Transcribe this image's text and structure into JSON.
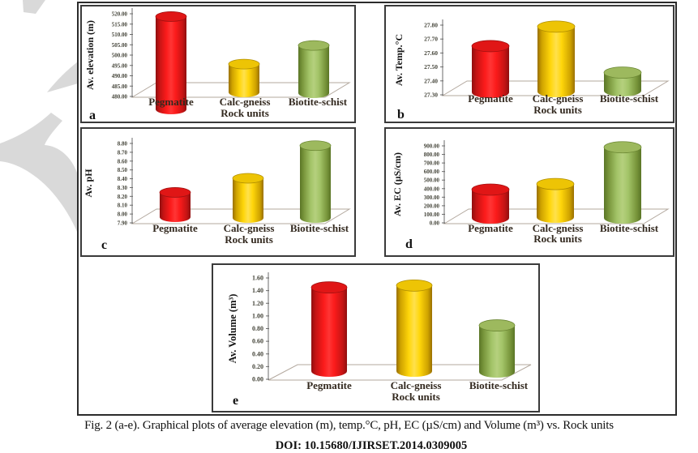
{
  "figure": {
    "caption": "Fig. 2 (a-e). Graphical plots of average elevation (m), temp.°C, pH, EC (µS/cm) and Volume (m³) vs. Rock units",
    "doi_line": "DOI: 10.15680/IJIRSET.2014.0309005"
  },
  "colors": {
    "pegmatite_red": "#e60000",
    "calc_gneiss_yellow": "#f2c500",
    "biotite_schist_green": "#93b552",
    "watermark_grey": "#d9d9d9",
    "axis_grey": "#6b6b6b",
    "floor_grey": "#b3a89e",
    "tick_text": "#45453a",
    "label_text": "#33291f"
  },
  "chart_data": [
    {
      "id": "a",
      "type": "bar",
      "title": "",
      "ylabel": "Av. elevation (m)",
      "xlabel": "Rock units",
      "categories": [
        "Pegmatite",
        "Calc-gneiss",
        "Biotite-schist"
      ],
      "values": [
        521,
        498,
        507
      ],
      "ylim": [
        480,
        520
      ],
      "yticks": [
        "520.00",
        "515.00",
        "510.00",
        "505.00",
        "500.00",
        "495.00",
        "490.00",
        "485.00",
        "480.00"
      ],
      "letter": "a",
      "grid": false,
      "legend": "none"
    },
    {
      "id": "b",
      "type": "bar",
      "title": "",
      "ylabel": "Av. Temp.°C",
      "xlabel": "Rock units",
      "categories": [
        "Pegmatite",
        "Calc-gneiss",
        "Biotite-schist"
      ],
      "values": [
        27.69,
        27.83,
        27.5
      ],
      "ylim": [
        27.3,
        27.8
      ],
      "yticks": [
        "27.80",
        "27.70",
        "27.60",
        "27.50",
        "27.40",
        "27.30"
      ],
      "letter": "b",
      "grid": false,
      "legend": "none"
    },
    {
      "id": "c",
      "type": "bar",
      "title": "",
      "ylabel": "Av. pH",
      "xlabel": "Rock units",
      "categories": [
        "Pegmatite",
        "Calc-gneiss",
        "Biotite-schist"
      ],
      "values": [
        8.3,
        8.46,
        8.83
      ],
      "ylim": [
        7.9,
        8.8
      ],
      "yticks": [
        "8.80",
        "8.70",
        "8.60",
        "8.50",
        "8.40",
        "8.30",
        "8.20",
        "8.10",
        "8.00",
        "7.90"
      ],
      "letter": "c",
      "grid": false,
      "legend": "none"
    },
    {
      "id": "d",
      "type": "bar",
      "title": "",
      "ylabel": "Av. EC (µS/cm)",
      "xlabel": "Rock units",
      "categories": [
        "Pegmatite",
        "Calc-gneiss",
        "Biotite-schist"
      ],
      "values": [
        455,
        520,
        950
      ],
      "ylim": [
        0,
        900
      ],
      "yticks": [
        "900.00",
        "800.00",
        "700.00",
        "600.00",
        "500.00",
        "400.00",
        "300.00",
        "200.00",
        "100.00",
        "0.00"
      ],
      "letter": "d",
      "grid": false,
      "legend": "none"
    },
    {
      "id": "e",
      "type": "bar",
      "title": "",
      "ylabel": "Av. Volume (m³)",
      "xlabel": "Rock units",
      "categories": [
        "Pegmatite",
        "Calc-gneiss",
        "Biotite-schist"
      ],
      "values": [
        1.54,
        1.57,
        0.94
      ],
      "ylim": [
        0,
        1.6
      ],
      "yticks": [
        "1.60",
        "1.40",
        "1.20",
        "1.00",
        "0.80",
        "0.60",
        "0.40",
        "0.20",
        "0.00"
      ],
      "letter": "e",
      "grid": false,
      "legend": "none"
    }
  ]
}
